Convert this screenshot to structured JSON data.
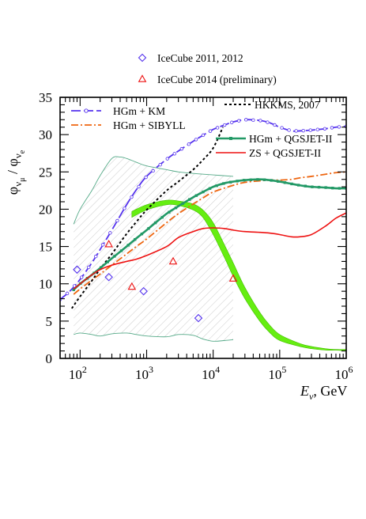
{
  "chart_data": {
    "type": "line",
    "xlabel": "E_ν , GeV",
    "xlabel_main": "E",
    "xlabel_sub": "ν",
    "xlabel_unit": ", GeV",
    "ylabel_parts": [
      "φ",
      "ν",
      "μ",
      " / φ",
      "ν",
      "e"
    ],
    "x_scale": "log",
    "xlim": [
      50,
      1000000
    ],
    "ylim": [
      0,
      35
    ],
    "x_ticks": [
      100,
      1000,
      10000,
      100000,
      1000000
    ],
    "x_tick_labels": [
      {
        "base": "10",
        "exp": "2"
      },
      {
        "base": "10",
        "exp": "3"
      },
      {
        "base": "10",
        "exp": "4"
      },
      {
        "base": "10",
        "exp": "5"
      },
      {
        "base": "10",
        "exp": "6"
      }
    ],
    "y_ticks": [
      0,
      5,
      10,
      15,
      20,
      25,
      30,
      35
    ],
    "y_tick_labels": [
      "0",
      "5",
      "10",
      "15",
      "20",
      "25",
      "30",
      "35"
    ],
    "series": [
      {
        "name": "HGm + KM",
        "color": "#5533ee",
        "style": "dash-circle",
        "x": [
          50,
          70,
          100,
          150,
          200,
          300,
          500,
          700,
          1000,
          2000,
          3000,
          5000,
          7000,
          10000,
          15000,
          20000,
          30000,
          50000,
          70000,
          100000,
          150000,
          200000,
          300000,
          500000,
          700000,
          1000000
        ],
        "y": [
          7.9,
          9.0,
          10.6,
          12.8,
          14.6,
          17.2,
          20.6,
          22.6,
          24.4,
          26.7,
          27.8,
          29.1,
          29.9,
          30.7,
          31.3,
          31.7,
          32.0,
          31.9,
          31.6,
          31.0,
          30.5,
          30.5,
          30.6,
          30.8,
          31.0,
          31.1
        ]
      },
      {
        "name": "HGm + SIBYLL",
        "color": "#ee6611",
        "style": "dash-dot",
        "x": [
          80,
          100,
          150,
          200,
          300,
          500,
          700,
          1000,
          2000,
          3000,
          5000,
          7000,
          10000,
          20000,
          30000,
          50000,
          70000,
          100000,
          150000,
          200000,
          300000,
          500000,
          700000,
          1000000
        ],
        "y": [
          8.6,
          9.3,
          10.5,
          11.3,
          12.5,
          14.0,
          15.0,
          16.0,
          18.2,
          19.4,
          20.7,
          21.5,
          22.3,
          23.2,
          23.6,
          23.8,
          23.9,
          23.9,
          24.0,
          24.2,
          24.4,
          24.7,
          24.9,
          25.0
        ]
      },
      {
        "name": "HKKMS, 2007",
        "color": "#000000",
        "style": "dotted",
        "x": [
          75,
          100,
          150,
          200,
          300,
          500,
          700,
          1000,
          2000,
          3000,
          5000,
          7000,
          10000,
          14000
        ],
        "y": [
          6.7,
          8.3,
          10.4,
          12.0,
          14.0,
          16.7,
          18.3,
          19.9,
          22.5,
          23.7,
          25.3,
          26.6,
          28.2,
          31.0
        ]
      },
      {
        "name": "HGm + QGSJET-II",
        "color": "#229966",
        "style": "solid-square",
        "x": [
          80,
          100,
          150,
          200,
          300,
          500,
          700,
          1000,
          2000,
          3000,
          5000,
          7000,
          10000,
          15000,
          20000,
          30000,
          50000,
          70000,
          100000,
          150000,
          200000,
          300000,
          500000,
          700000,
          1000000
        ],
        "y": [
          9.2,
          10.0,
          11.2,
          12.1,
          13.4,
          15.0,
          16.1,
          17.2,
          19.4,
          20.4,
          21.6,
          22.3,
          23.0,
          23.5,
          23.7,
          23.9,
          24.0,
          23.9,
          23.7,
          23.4,
          23.2,
          23.0,
          22.9,
          22.8,
          22.8
        ]
      },
      {
        "name": "ZS + QGSJET-II",
        "color": "#ee1111",
        "style": "solid",
        "x": [
          80,
          100,
          150,
          200,
          300,
          500,
          700,
          1000,
          2000,
          3000,
          5000,
          7000,
          10000,
          15000,
          20000,
          30000,
          50000,
          70000,
          100000,
          150000,
          200000,
          300000,
          500000,
          700000,
          1000000
        ],
        "y": [
          9.3,
          10.0,
          11.2,
          11.9,
          12.5,
          13.0,
          13.3,
          13.8,
          15.0,
          16.2,
          17.0,
          17.4,
          17.5,
          17.4,
          17.2,
          17.0,
          16.9,
          16.8,
          16.6,
          16.3,
          16.3,
          16.6,
          17.8,
          18.8,
          19.5
        ]
      }
    ],
    "points": [
      {
        "name": "IceCube 2011, 2012",
        "color": "#5533ee",
        "marker": "diamond",
        "x": [
          90,
          270,
          900,
          6000
        ],
        "y": [
          11.9,
          10.9,
          9.0,
          5.4
        ]
      },
      {
        "name": "IceCube 2014 (preliminary)",
        "color": "#ee1111",
        "marker": "triangle",
        "x": [
          270,
          600,
          2500,
          20000
        ],
        "y": [
          15.3,
          9.6,
          13.0,
          10.7
        ]
      }
    ],
    "band_green": {
      "color": "#66ee11",
      "x": [
        600,
        1000,
        2000,
        3000,
        5000,
        7000,
        10000,
        15000,
        20000,
        30000,
        50000,
        70000,
        100000,
        200000,
        300000,
        500000,
        700000,
        1000000
      ],
      "y_low": [
        18.9,
        19.9,
        20.6,
        20.5,
        19.9,
        18.9,
        16.6,
        13.4,
        11.0,
        8.0,
        5.0,
        3.5,
        2.4,
        1.6,
        1.3,
        1.1,
        1.1,
        1.0
      ],
      "y_high": [
        19.7,
        20.6,
        21.2,
        21.1,
        20.7,
        19.9,
        18.2,
        15.1,
        12.8,
        9.5,
        6.2,
        4.5,
        3.2,
        2.0,
        1.6,
        1.3,
        1.2,
        1.2
      ]
    },
    "band_hatch": {
      "color": "#55aa88",
      "x_upper": [
        80,
        100,
        150,
        200,
        300,
        400,
        500,
        700,
        1000,
        2000,
        3000,
        5000,
        10000,
        20000
      ],
      "y_upper": [
        18.0,
        20.0,
        22.5,
        24.5,
        26.8,
        27.0,
        26.8,
        26.3,
        25.8,
        25.3,
        25.0,
        24.8,
        24.6,
        24.4
      ],
      "x_lower": [
        80,
        100,
        150,
        200,
        300,
        500,
        700,
        1000,
        2000,
        3000,
        5000,
        7000,
        10000,
        15000,
        20000
      ],
      "y_lower": [
        3.2,
        3.4,
        3.2,
        3.0,
        3.3,
        3.4,
        3.2,
        3.0,
        2.9,
        3.2,
        3.1,
        2.6,
        2.3,
        2.4,
        2.5
      ]
    }
  }
}
